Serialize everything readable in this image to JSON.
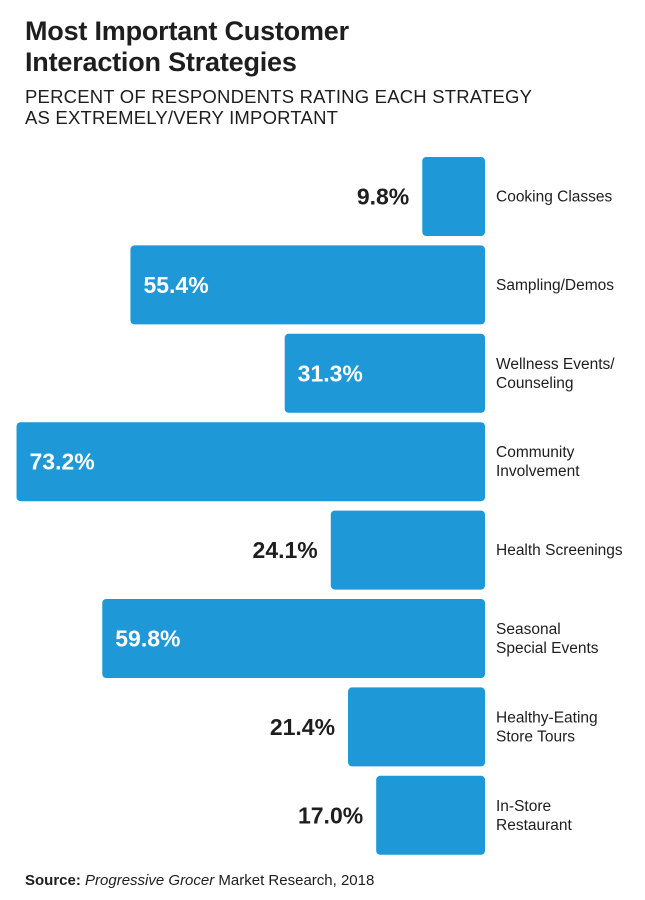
{
  "header": {
    "title_line1": "Most Important Customer",
    "title_line2": "Interaction Strategies",
    "subtitle_line1": "PERCENT OF RESPONDENTS RATING EACH STRATEGY",
    "subtitle_line2": "AS EXTREMELY/VERY IMPORTANT"
  },
  "source": {
    "label": "Source:",
    "publication": "Progressive Grocer",
    "rest": " Market Research, 2018"
  },
  "colors": {
    "bar": "#1e98d6",
    "text_dark": "#1e1e1e",
    "text_on_bar": "#ffffff"
  },
  "chart_data": {
    "type": "bar",
    "orientation": "horizontal",
    "alignment": "right-aligned",
    "categories": [
      [
        "Cooking Classes"
      ],
      [
        "Sampling/Demos"
      ],
      [
        "Wellness Events/",
        "Counseling"
      ],
      [
        "Community",
        "Involvement"
      ],
      [
        "Health Screenings"
      ],
      [
        "Seasonal",
        "Special Events"
      ],
      [
        "Healthy-Eating",
        "Store Tours"
      ],
      [
        "In-Store",
        "Restaurant"
      ]
    ],
    "values": [
      9.8,
      55.4,
      31.3,
      73.2,
      24.1,
      59.8,
      21.4,
      17.0
    ],
    "value_labels": [
      "9.8%",
      "55.4%",
      "31.3%",
      "73.2%",
      "24.1%",
      "59.8%",
      "21.4%",
      "17.0%"
    ],
    "unit": "%",
    "title": "Most Important Customer Interaction Strategies",
    "xlabel": "",
    "ylabel": ""
  }
}
